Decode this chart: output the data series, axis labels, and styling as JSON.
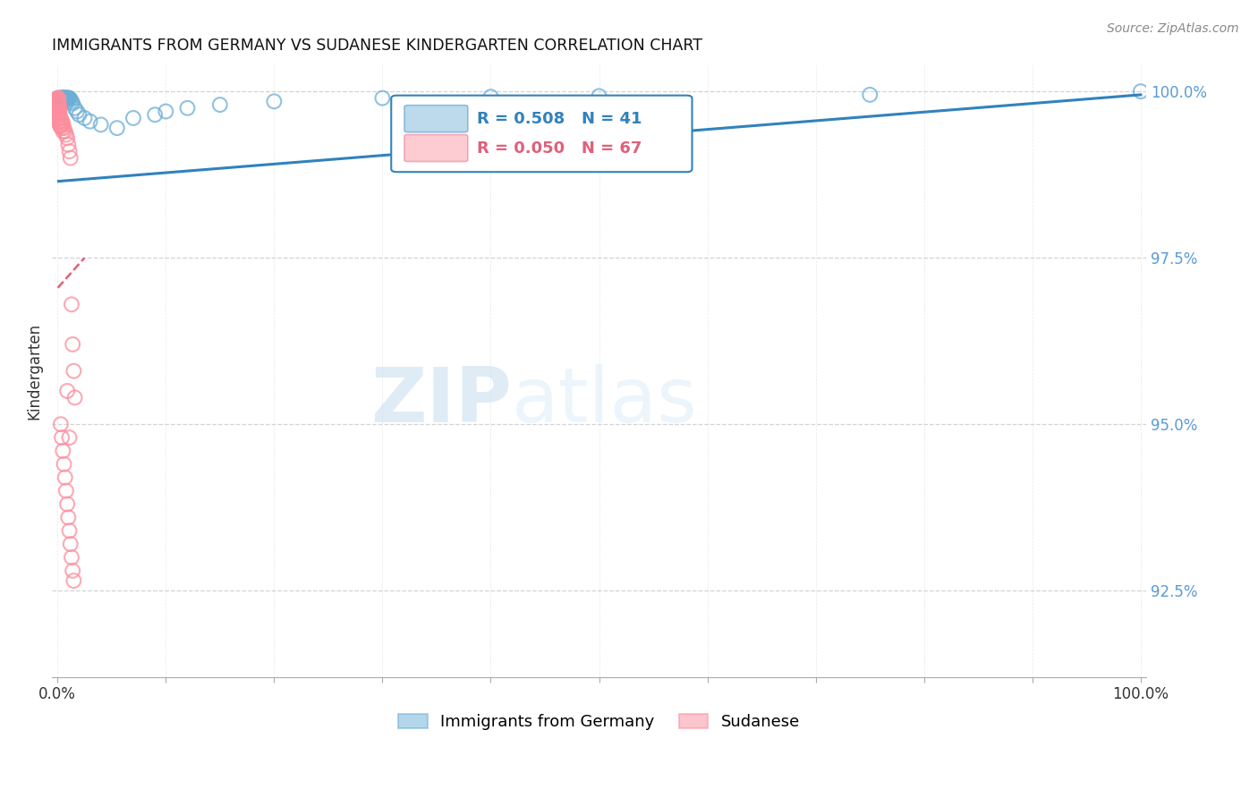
{
  "title": "IMMIGRANTS FROM GERMANY VS SUDANESE KINDERGARTEN CORRELATION CHART",
  "source_text": "Source: ZipAtlas.com",
  "ylabel": "Kindergarten",
  "watermark_zip": "ZIP",
  "watermark_atlas": "atlas",
  "xlim": [
    -0.005,
    1.005
  ],
  "ylim": [
    0.912,
    1.004
  ],
  "yticks": [
    0.925,
    0.95,
    0.975,
    1.0
  ],
  "ytick_labels": [
    "92.5%",
    "95.0%",
    "97.5%",
    "100.0%"
  ],
  "xtick_vals": [
    0.0,
    0.1,
    0.2,
    0.3,
    0.4,
    0.5,
    0.6,
    0.7,
    0.8,
    0.9,
    1.0
  ],
  "xtick_labels": [
    "0.0%",
    "",
    "",
    "",
    "",
    "",
    "",
    "",
    "",
    "",
    "100.0%"
  ],
  "legend_blue_label": "Immigrants from Germany",
  "legend_pink_label": "Sudanese",
  "R_blue": 0.508,
  "N_blue": 41,
  "R_pink": 0.05,
  "N_pink": 67,
  "blue_color": "#6baed6",
  "pink_color": "#fc8d9c",
  "blue_line_color": "#3182bd",
  "pink_line_color": "#e0607a",
  "background_color": "#ffffff",
  "grid_color": "#c8c8c8",
  "right_axis_color": "#5b9bd5",
  "blue_trend_x": [
    0.001,
    1.0
  ],
  "blue_trend_y": [
    0.9865,
    0.9995
  ],
  "pink_trend_x": [
    0.0003,
    0.025
  ],
  "pink_trend_y": [
    0.9705,
    0.975
  ],
  "blue_scatter_x": [
    0.002,
    0.003,
    0.003,
    0.004,
    0.004,
    0.005,
    0.005,
    0.005,
    0.006,
    0.006,
    0.006,
    0.007,
    0.007,
    0.008,
    0.008,
    0.009,
    0.009,
    0.01,
    0.01,
    0.011,
    0.012,
    0.013,
    0.014,
    0.016,
    0.018,
    0.02,
    0.025,
    0.03,
    0.04,
    0.055,
    0.07,
    0.09,
    0.1,
    0.12,
    0.15,
    0.2,
    0.3,
    0.4,
    0.5,
    0.75,
    1.0
  ],
  "blue_scatter_y": [
    0.999,
    0.999,
    0.999,
    0.999,
    0.999,
    0.999,
    0.999,
    0.999,
    0.999,
    0.999,
    0.999,
    0.999,
    0.999,
    0.999,
    0.999,
    0.999,
    0.999,
    0.999,
    0.999,
    0.999,
    0.9988,
    0.9985,
    0.9982,
    0.9975,
    0.997,
    0.9965,
    0.996,
    0.9955,
    0.995,
    0.9945,
    0.996,
    0.9965,
    0.997,
    0.9975,
    0.998,
    0.9985,
    0.999,
    0.9992,
    0.9993,
    0.9995,
    1.0
  ],
  "pink_scatter_x": [
    0.0003,
    0.0003,
    0.0004,
    0.0004,
    0.0005,
    0.0005,
    0.0005,
    0.0006,
    0.0007,
    0.0007,
    0.0008,
    0.0008,
    0.0009,
    0.0009,
    0.001,
    0.001,
    0.001,
    0.001,
    0.0012,
    0.0012,
    0.0013,
    0.0013,
    0.0014,
    0.0015,
    0.0015,
    0.0015,
    0.0016,
    0.0017,
    0.0018,
    0.002,
    0.002,
    0.002,
    0.0022,
    0.0023,
    0.0025,
    0.003,
    0.003,
    0.004,
    0.004,
    0.005,
    0.005,
    0.006,
    0.007,
    0.008,
    0.009,
    0.01,
    0.011,
    0.012,
    0.013,
    0.014,
    0.015,
    0.016,
    0.003,
    0.004,
    0.005,
    0.006,
    0.007,
    0.008,
    0.009,
    0.01,
    0.011,
    0.012,
    0.013,
    0.014,
    0.015,
    0.009,
    0.011
  ],
  "pink_scatter_y": [
    0.999,
    0.9985,
    0.999,
    0.9985,
    0.999,
    0.9988,
    0.9985,
    0.9988,
    0.9985,
    0.9982,
    0.9985,
    0.998,
    0.9982,
    0.9978,
    0.9985,
    0.998,
    0.9975,
    0.997,
    0.9978,
    0.9972,
    0.9975,
    0.9968,
    0.997,
    0.9975,
    0.9968,
    0.9962,
    0.9965,
    0.996,
    0.9955,
    0.9965,
    0.9958,
    0.995,
    0.996,
    0.9955,
    0.9948,
    0.996,
    0.9948,
    0.9955,
    0.9945,
    0.9952,
    0.994,
    0.9945,
    0.994,
    0.9935,
    0.993,
    0.992,
    0.991,
    0.99,
    0.968,
    0.962,
    0.958,
    0.954,
    0.95,
    0.948,
    0.946,
    0.944,
    0.942,
    0.94,
    0.938,
    0.936,
    0.934,
    0.932,
    0.93,
    0.928,
    0.9265,
    0.955,
    0.948
  ]
}
